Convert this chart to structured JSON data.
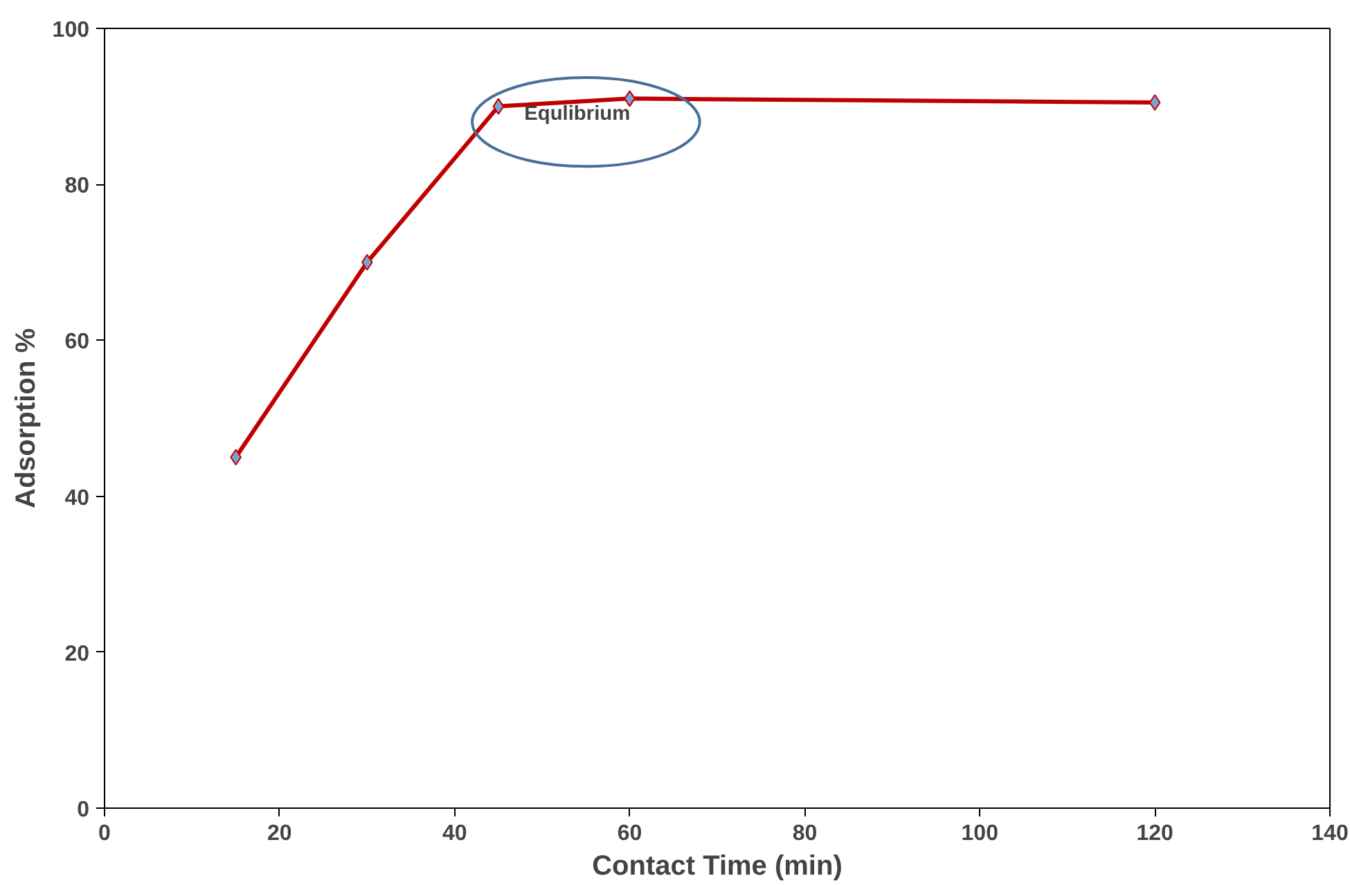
{
  "chart_data": {
    "type": "line",
    "xlabel": "Contact Time (min)",
    "ylabel": "Adsorption %",
    "x": [
      15,
      30,
      45,
      60,
      120
    ],
    "series": [
      {
        "color": "#c00000",
        "values": [
          45,
          70,
          90,
          91,
          90.5
        ]
      }
    ],
    "xlim": [
      0,
      140
    ],
    "xticks": [
      0,
      20,
      40,
      60,
      80,
      100,
      120,
      140
    ],
    "ylim": [
      0,
      100
    ],
    "yticks": [
      0,
      20,
      40,
      60,
      80,
      100
    ],
    "grid": false,
    "marker": "diamond",
    "line_style": "solid",
    "annotations": [
      "Equlibrium"
    ]
  }
}
